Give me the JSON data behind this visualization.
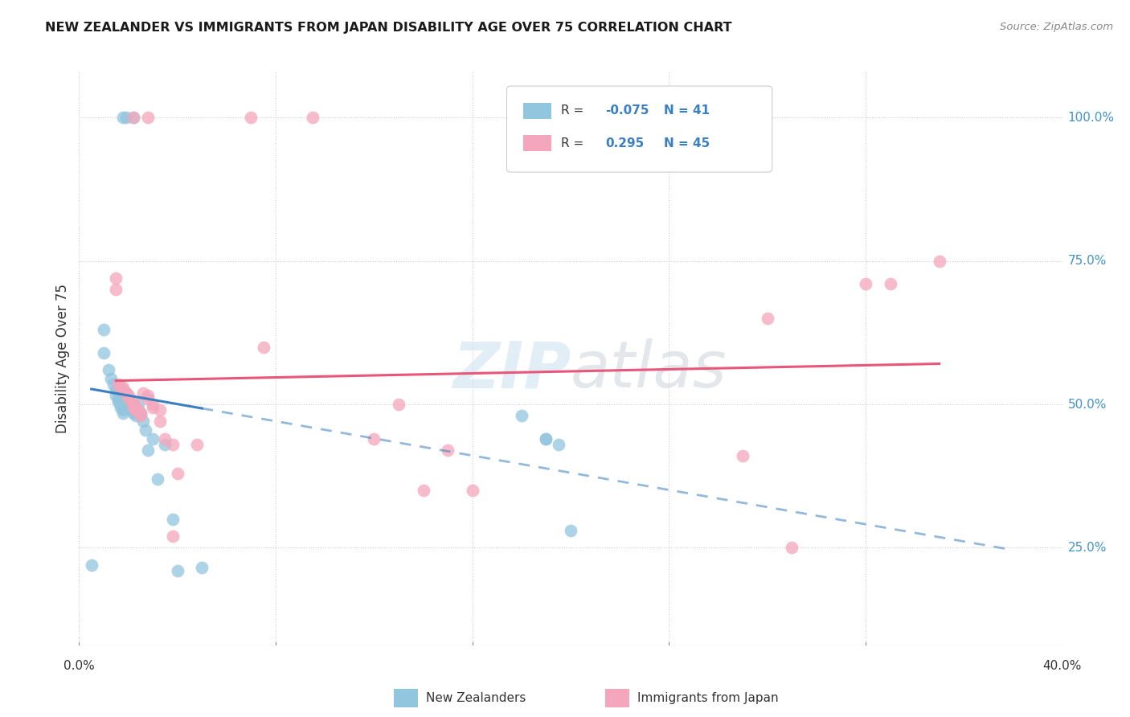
{
  "title": "NEW ZEALANDER VS IMMIGRANTS FROM JAPAN DISABILITY AGE OVER 75 CORRELATION CHART",
  "source": "Source: ZipAtlas.com",
  "ylabel": "Disability Age Over 75",
  "legend_nz": "New Zealanders",
  "legend_jp": "Immigrants from Japan",
  "R_nz": "-0.075",
  "N_nz": "41",
  "R_jp": "0.295",
  "N_jp": "45",
  "color_nz": "#92c5de",
  "color_jp": "#f4a6bc",
  "color_nz_line": "#3a7fc1",
  "color_jp_line": "#e8567a",
  "watermark_zip": "ZIP",
  "watermark_atlas": "atlas",
  "xlim": [
    0.0,
    0.4
  ],
  "ylim": [
    0.08,
    1.08
  ],
  "xtick_positions": [
    0.0,
    0.08,
    0.16,
    0.24,
    0.32,
    0.4
  ],
  "ytick_positions": [
    0.25,
    0.5,
    0.75,
    1.0
  ],
  "ytick_labels": [
    "25.0%",
    "50.0%",
    "75.0%",
    "100.0%"
  ],
  "nz_x": [
    0.018,
    0.019,
    0.022,
    0.005,
    0.01,
    0.01,
    0.012,
    0.013,
    0.014,
    0.015,
    0.015,
    0.016,
    0.016,
    0.017,
    0.017,
    0.018,
    0.018,
    0.019,
    0.019,
    0.02,
    0.02,
    0.021,
    0.022,
    0.022,
    0.023,
    0.024,
    0.025,
    0.026,
    0.027,
    0.028,
    0.03,
    0.032,
    0.035,
    0.038,
    0.04,
    0.05,
    0.18,
    0.19,
    0.19,
    0.195,
    0.2
  ],
  "nz_y": [
    1.0,
    1.0,
    1.0,
    0.22,
    0.63,
    0.59,
    0.56,
    0.545,
    0.535,
    0.525,
    0.515,
    0.51,
    0.505,
    0.5,
    0.495,
    0.49,
    0.485,
    0.52,
    0.51,
    0.505,
    0.5,
    0.495,
    0.49,
    0.485,
    0.48,
    0.5,
    0.485,
    0.47,
    0.455,
    0.42,
    0.44,
    0.37,
    0.43,
    0.3,
    0.21,
    0.215,
    0.48,
    0.44,
    0.44,
    0.43,
    0.28
  ],
  "jp_x": [
    0.022,
    0.028,
    0.07,
    0.095,
    0.015,
    0.015,
    0.016,
    0.017,
    0.018,
    0.018,
    0.019,
    0.02,
    0.02,
    0.022,
    0.022,
    0.022,
    0.023,
    0.023,
    0.024,
    0.025,
    0.025,
    0.026,
    0.028,
    0.028,
    0.03,
    0.03,
    0.033,
    0.033,
    0.035,
    0.038,
    0.038,
    0.04,
    0.048,
    0.075,
    0.12,
    0.13,
    0.14,
    0.15,
    0.16,
    0.27,
    0.28,
    0.29,
    0.32,
    0.33,
    0.35
  ],
  "jp_y": [
    1.0,
    1.0,
    1.0,
    1.0,
    0.72,
    0.7,
    0.535,
    0.53,
    0.53,
    0.525,
    0.52,
    0.515,
    0.51,
    0.505,
    0.5,
    0.495,
    0.495,
    0.49,
    0.49,
    0.485,
    0.48,
    0.52,
    0.515,
    0.51,
    0.5,
    0.495,
    0.49,
    0.47,
    0.44,
    0.43,
    0.27,
    0.38,
    0.43,
    0.6,
    0.44,
    0.5,
    0.35,
    0.42,
    0.35,
    0.41,
    0.65,
    0.25,
    0.71,
    0.71,
    0.75
  ],
  "nz_line_x_start": 0.005,
  "nz_line_x_solid_end": 0.05,
  "nz_line_x_dash_end": 0.38,
  "jp_line_x_start": 0.015,
  "jp_line_x_end": 0.35
}
